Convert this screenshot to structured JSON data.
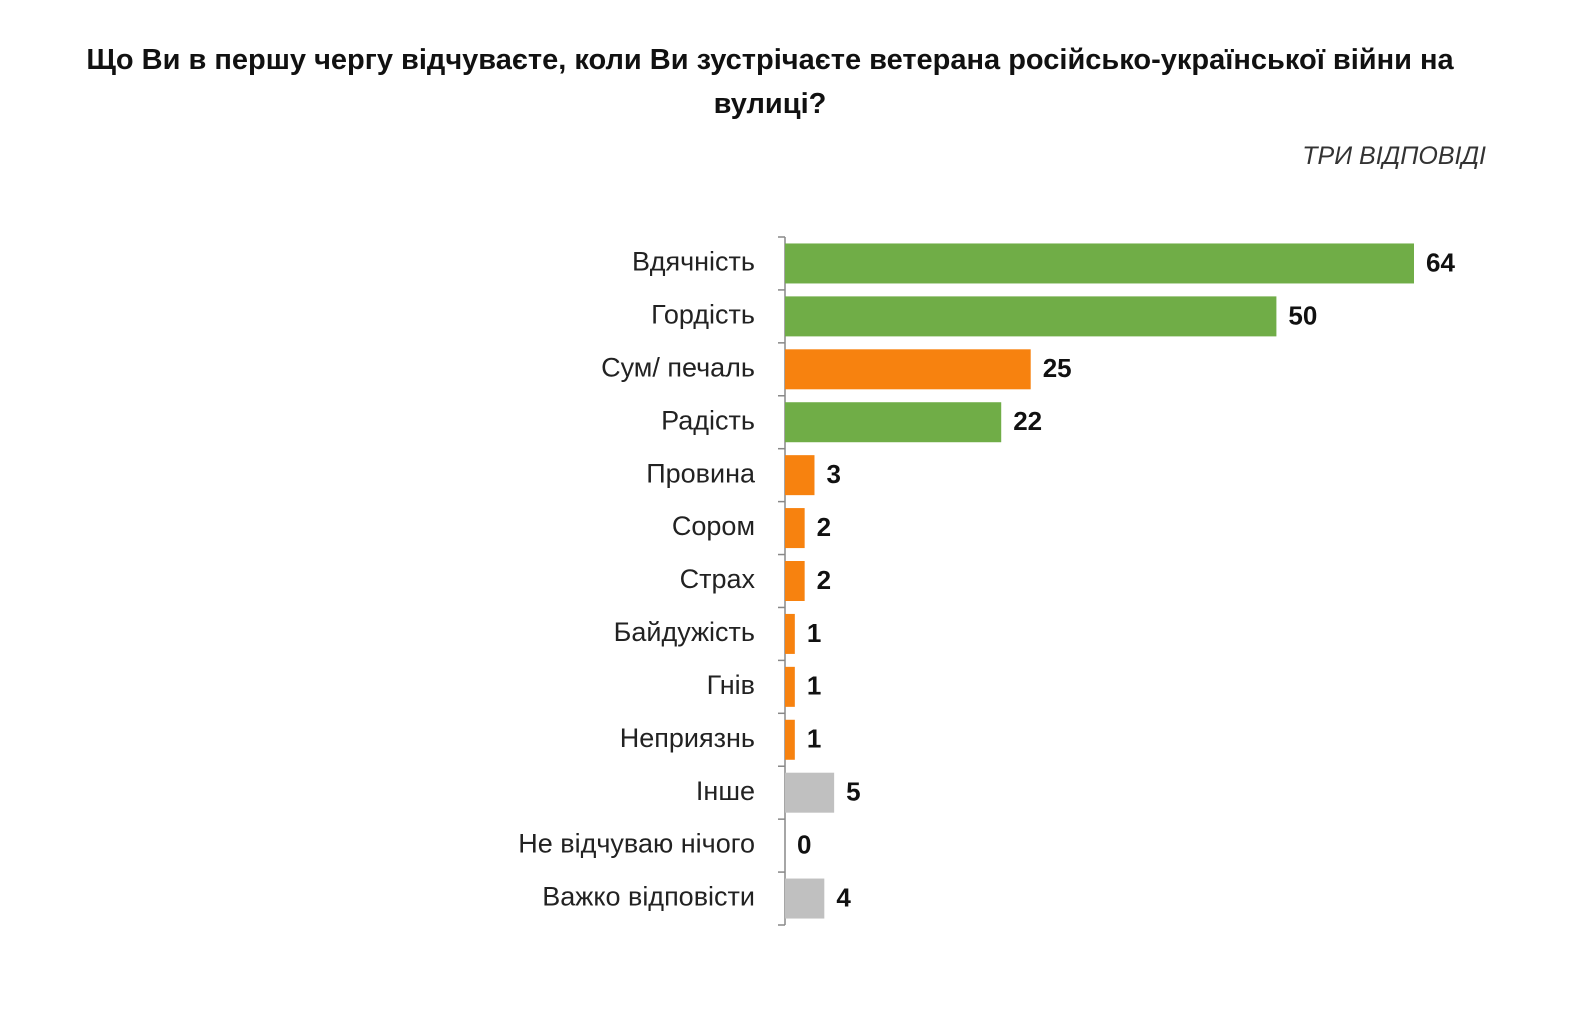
{
  "chart_data": {
    "type": "barh",
    "title": "Що Ви в першу чергу відчуваєте, коли Ви зустрічаєте ветерана російсько-української війни на вулиці?",
    "subtitle": "ТРИ ВІДПОВІДІ",
    "categories": [
      "Вдячність",
      "Гордість",
      "Сум/ печаль",
      "Радість",
      "Провина",
      "Сором",
      "Страх",
      "Байдужість",
      "Гнів",
      "Неприязнь",
      "Інше",
      "Не відчуваю нічого",
      "Важко відповісти"
    ],
    "values": [
      64,
      50,
      25,
      22,
      3,
      2,
      2,
      1,
      1,
      1,
      5,
      0,
      4
    ],
    "colors": [
      "#70ad47",
      "#70ad47",
      "#f7820f",
      "#70ad47",
      "#f7820f",
      "#f7820f",
      "#f7820f",
      "#f7820f",
      "#f7820f",
      "#f7820f",
      "#c0c0c0",
      "#c0c0c0",
      "#c0c0c0"
    ]
  }
}
